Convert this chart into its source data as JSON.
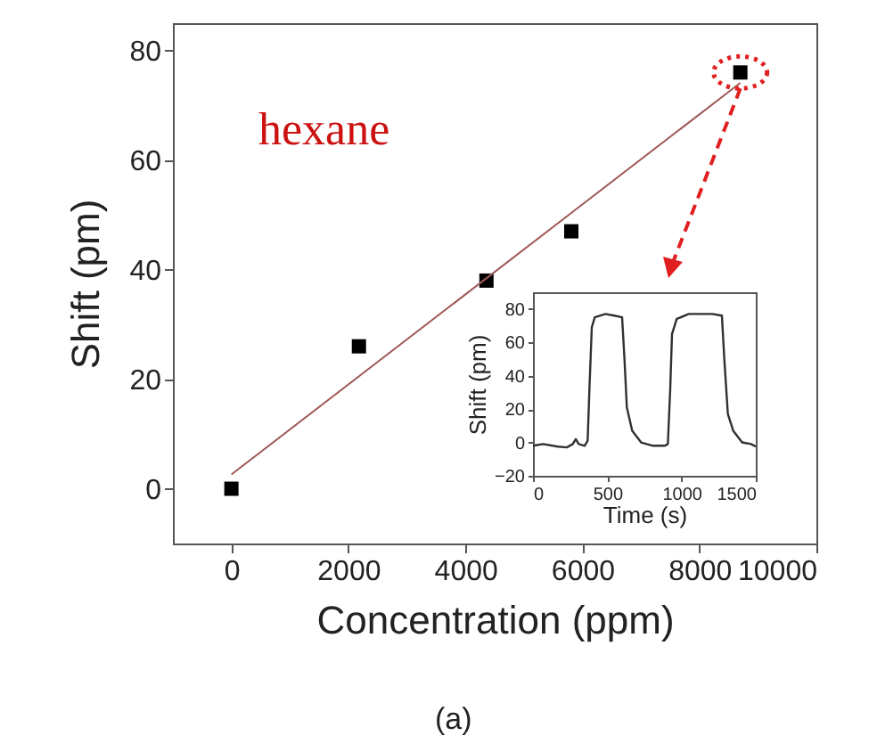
{
  "chart_data": [
    {
      "type": "scatter",
      "xlabel": "Concentration (ppm)",
      "ylabel": "Shift (pm)",
      "xlim": [
        -1000,
        10000
      ],
      "ylim": [
        -10,
        85
      ],
      "xticks": [
        0,
        2000,
        4000,
        6000,
        8000,
        10000
      ],
      "yticks": [
        0,
        20,
        40,
        60,
        80
      ],
      "grid": false,
      "annotations": [
        "hexane",
        "(a)"
      ],
      "series": [
        {
          "marker": "square",
          "color": "#000000",
          "x": [
            0,
            2180,
            4360,
            5810,
            8700
          ],
          "values": [
            0,
            26,
            38,
            47,
            76
          ]
        },
        {
          "type": "line",
          "marker": "none",
          "color": "#a05a5a",
          "x": [
            0,
            8700
          ],
          "values": [
            2.6,
            74.1
          ]
        }
      ]
    },
    {
      "type": "line",
      "xlabel": "Time (s)",
      "ylabel": "Shift (pm)",
      "xlim": [
        0,
        1500
      ],
      "ylim": [
        -20,
        90
      ],
      "xticks": [
        0,
        500,
        1000,
        1500
      ],
      "yticks": [
        -20,
        0,
        20,
        40,
        60,
        80
      ],
      "grid": false,
      "series": [
        {
          "color": "#303030",
          "x": [
            0,
            68,
            168,
            228,
            268,
            288,
            308,
            348,
            368,
            380,
            396,
            416,
            488,
            548,
            600,
            616,
            632,
            668,
            728,
            808,
            888,
            908,
            924,
            936,
            968,
            1048,
            1208,
            1272,
            1288,
            1312,
            1348,
            1408,
            1468,
            1500
          ],
          "values": [
            -2,
            -1,
            -2.5,
            -3,
            -1,
            2,
            -1,
            -2,
            1,
            32,
            69,
            75,
            77,
            76,
            75,
            50,
            21,
            7,
            0,
            -2,
            -2,
            -1,
            32,
            65,
            74,
            77,
            77,
            76,
            50,
            17,
            7,
            0,
            -1,
            -2.5
          ]
        }
      ]
    }
  ]
}
